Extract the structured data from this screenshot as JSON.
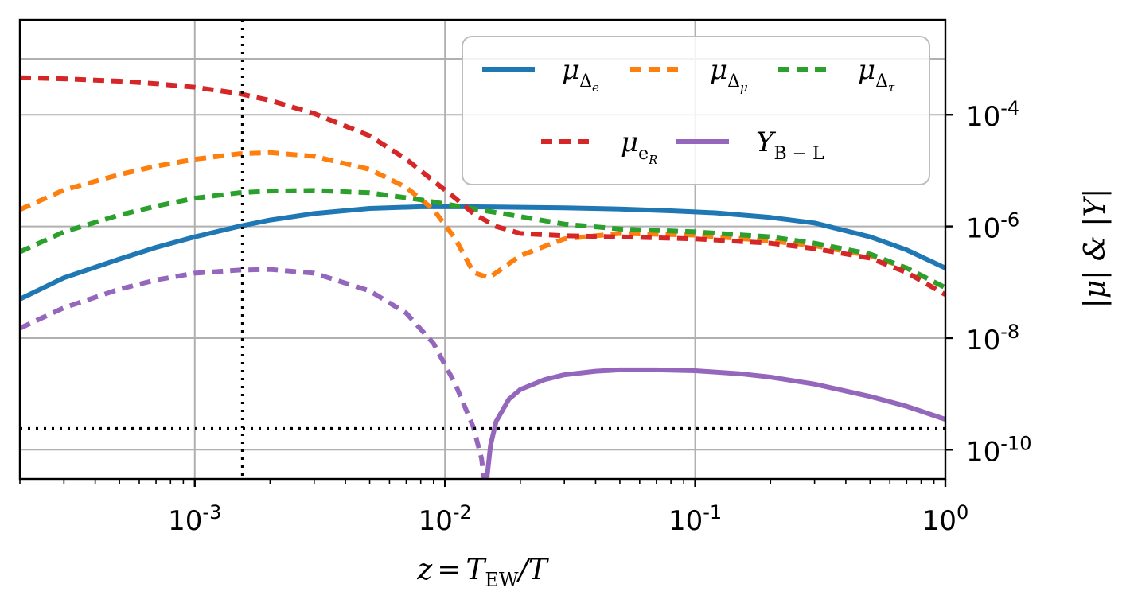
{
  "chart_data": {
    "type": "line",
    "xscale": "log",
    "yscale": "log",
    "xlim": [
      0.0002,
      1.0
    ],
    "ylim": [
      3e-11,
      0.005
    ],
    "xlabel": "z = T_EW / T",
    "xlabel_parts": {
      "lhs": "z",
      "eq": "=",
      "T": "T",
      "sub": "EW",
      "rest": "/T"
    },
    "ylabel": "|μ| & |Y|",
    "x_ticks": [
      {
        "value": 0.001,
        "base": "10",
        "exp": "-3"
      },
      {
        "value": 0.01,
        "base": "10",
        "exp": "-2"
      },
      {
        "value": 0.1,
        "base": "10",
        "exp": "-1"
      },
      {
        "value": 1.0,
        "base": "10",
        "exp": "0"
      }
    ],
    "y_ticks": [
      {
        "value": 0.0001,
        "base": "10",
        "exp": "-4"
      },
      {
        "value": 1e-06,
        "base": "10",
        "exp": "-6"
      },
      {
        "value": 1e-08,
        "base": "10",
        "exp": "-8"
      },
      {
        "value": 1e-10,
        "base": "10",
        "exp": "-10"
      }
    ],
    "y_grid_values": [
      0.001,
      0.0001,
      1e-06,
      1e-08,
      1e-10
    ],
    "grid": true,
    "legend_position": "top-right",
    "reference_lines": [
      {
        "orientation": "vertical",
        "value": 0.00155,
        "style": "dotted",
        "color": "#000000"
      },
      {
        "orientation": "horizontal",
        "value": 2.4e-10,
        "style": "dotted",
        "color": "#000000"
      }
    ],
    "series": [
      {
        "name": "μ_Δe",
        "label_main": "μ",
        "label_sub": "Δ",
        "label_subsub": "e",
        "color": "#1f77b4",
        "style": "solid",
        "x": [
          0.0002,
          0.0003,
          0.0005,
          0.0007,
          0.001,
          0.0015,
          0.002,
          0.003,
          0.005,
          0.008,
          0.012,
          0.02,
          0.03,
          0.05,
          0.08,
          0.12,
          0.2,
          0.3,
          0.5,
          0.7,
          1.0
        ],
        "y": [
          5e-08,
          1.2e-07,
          2.6e-07,
          4.2e-07,
          6.5e-07,
          1e-06,
          1.3e-06,
          1.7e-06,
          2.1e-06,
          2.25e-06,
          2.25e-06,
          2.2e-06,
          2.15e-06,
          2.05e-06,
          1.9e-06,
          1.75e-06,
          1.45e-06,
          1.15e-06,
          6.5e-07,
          3.8e-07,
          1.8e-07
        ]
      },
      {
        "name": "μ_Δμ",
        "label_main": "μ",
        "label_sub": "Δ",
        "label_subsub": "μ",
        "color": "#ff7f0e",
        "style": "dashed",
        "x": [
          0.0002,
          0.0003,
          0.0005,
          0.0007,
          0.001,
          0.0015,
          0.002,
          0.003,
          0.005,
          0.007,
          0.009,
          0.011,
          0.013,
          0.015,
          0.02,
          0.03,
          0.05,
          0.1,
          0.2,
          0.3,
          0.5,
          0.7,
          1.0
        ],
        "y": [
          2e-06,
          4.5e-06,
          8.5e-06,
          1.2e-05,
          1.6e-05,
          2e-05,
          2.1e-05,
          1.8e-05,
          1.05e-05,
          5e-06,
          2e-06,
          6e-07,
          1.5e-07,
          1.2e-07,
          3e-07,
          6e-07,
          7.5e-07,
          7e-07,
          5.5e-07,
          4.5e-07,
          3e-07,
          1.8e-07,
          8e-08
        ]
      },
      {
        "name": "μ_Δτ",
        "label_main": "μ",
        "label_sub": "Δ",
        "label_subsub": "τ",
        "color": "#2ca02c",
        "style": "dashed",
        "x": [
          0.0002,
          0.0003,
          0.0005,
          0.0007,
          0.001,
          0.0015,
          0.002,
          0.003,
          0.005,
          0.008,
          0.012,
          0.02,
          0.03,
          0.05,
          0.1,
          0.2,
          0.3,
          0.5,
          0.7,
          1.0
        ],
        "y": [
          3.5e-07,
          8e-07,
          1.6e-06,
          2.3e-06,
          3.2e-06,
          4e-06,
          4.3e-06,
          4.4e-06,
          4e-06,
          3e-06,
          2.2e-06,
          1.5e-06,
          1.1e-06,
          9e-07,
          8e-07,
          6.5e-07,
          5e-07,
          3.2e-07,
          1.8e-07,
          8e-08
        ]
      },
      {
        "name": "μ_eR",
        "label_main": "μ",
        "label_sub": "e",
        "label_subsub": "R",
        "color": "#d62728",
        "style": "dashed",
        "x": [
          0.0002,
          0.0003,
          0.0005,
          0.0007,
          0.001,
          0.0015,
          0.002,
          0.003,
          0.005,
          0.007,
          0.009,
          0.011,
          0.013,
          0.016,
          0.02,
          0.03,
          0.05,
          0.1,
          0.2,
          0.3,
          0.5,
          0.7,
          1.0
        ],
        "y": [
          0.00046,
          0.00044,
          0.0004,
          0.00036,
          0.00031,
          0.00024,
          0.00018,
          0.000105,
          4.2e-05,
          1.6e-05,
          6.5e-06,
          3.2e-06,
          1.7e-06,
          1e-06,
          7.5e-07,
          6.8e-07,
          6.5e-07,
          6e-07,
          5e-07,
          4e-07,
          2.7e-07,
          1.5e-07,
          6e-08
        ]
      },
      {
        "name": "Y_B-L (negative branch)",
        "label_main": "Y",
        "label_sub": "B − L",
        "label_subsub": "",
        "legend": false,
        "color": "#9467bd",
        "style": "dashed",
        "x": [
          0.0002,
          0.0003,
          0.0005,
          0.0007,
          0.001,
          0.0015,
          0.002,
          0.003,
          0.005,
          0.007,
          0.009,
          0.011,
          0.013,
          0.014,
          0.0145
        ],
        "y": [
          1.5e-08,
          3.5e-08,
          7.5e-08,
          1.1e-07,
          1.45e-07,
          1.65e-07,
          1.7e-07,
          1.45e-07,
          7e-08,
          2.8e-08,
          8e-09,
          1.5e-09,
          2.5e-10,
          7e-11,
          2e-11
        ]
      },
      {
        "name": "Y_B-L",
        "label_main": "Y",
        "label_sub": "B − L",
        "label_subsub": "",
        "color": "#9467bd",
        "style": "solid",
        "x": [
          0.0147,
          0.0152,
          0.016,
          0.018,
          0.02,
          0.025,
          0.03,
          0.04,
          0.05,
          0.07,
          0.1,
          0.15,
          0.2,
          0.3,
          0.5,
          0.7,
          1.0
        ],
        "y": [
          3e-11,
          1.2e-10,
          3.2e-10,
          8e-10,
          1.2e-09,
          1.8e-09,
          2.2e-09,
          2.55e-09,
          2.7e-09,
          2.7e-09,
          2.6e-09,
          2.3e-09,
          2e-09,
          1.5e-09,
          9e-10,
          6e-10,
          3.5e-10
        ]
      }
    ]
  }
}
